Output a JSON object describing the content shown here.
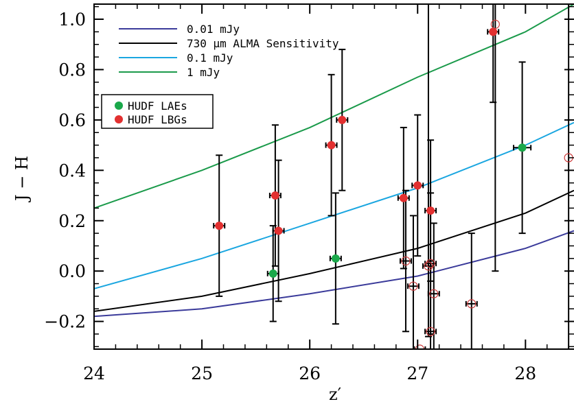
{
  "chart_data": {
    "type": "scatter",
    "xlabel": "z′",
    "ylabel": "J − H",
    "xlim": [
      24,
      28.45
    ],
    "ylim": [
      -0.31,
      1.06
    ],
    "xticks": [
      "24",
      "25",
      "26",
      "27",
      "28"
    ],
    "yticks": [
      "1.0",
      "0.8",
      "0.6",
      "0.4",
      "0.2",
      "0.0",
      "−0.2"
    ],
    "xtick_values": [
      24,
      25,
      26,
      27,
      28
    ],
    "ytick_values": [
      1.0,
      0.8,
      0.6,
      0.4,
      0.2,
      0.0,
      -0.2
    ],
    "grid": false,
    "lines": [
      {
        "name": "0.01 mJy",
        "color": "#3a3a9a",
        "x": [
          24,
          25,
          26,
          27,
          28,
          28.45
        ],
        "y": [
          -0.18,
          -0.15,
          -0.09,
          -0.02,
          0.09,
          0.16
        ]
      },
      {
        "name": "730 μm ALMA Sensitivity",
        "color": "#000000",
        "x": [
          24,
          25,
          26,
          27,
          28,
          28.45
        ],
        "y": [
          -0.16,
          -0.1,
          -0.01,
          0.09,
          0.23,
          0.32
        ]
      },
      {
        "name": "0.1 mJy",
        "color": "#1aa6e0",
        "x": [
          24,
          25,
          26,
          27,
          28,
          28.45
        ],
        "y": [
          -0.07,
          0.05,
          0.19,
          0.33,
          0.5,
          0.59
        ]
      },
      {
        "name": "1 mJy",
        "color": "#1a9a4a",
        "x": [
          24,
          25,
          26,
          27,
          28,
          28.45
        ],
        "y": [
          0.25,
          0.4,
          0.57,
          0.77,
          0.95,
          1.06
        ]
      }
    ],
    "series": [
      {
        "name": "HUDF LAEs",
        "color": "#1aa84a",
        "points": [
          {
            "x": 25.66,
            "y": -0.01,
            "ylo": -0.2,
            "yhi": 0.18,
            "xerr": 0.01
          },
          {
            "x": 26.24,
            "y": 0.05,
            "ylo": -0.21,
            "yhi": 0.31,
            "xerr": 0.05
          },
          {
            "x": 27.97,
            "y": 0.49,
            "ylo": 0.15,
            "yhi": 0.83,
            "xerr": 0.08
          }
        ]
      },
      {
        "name": "HUDF LBGs",
        "color": "#e23030",
        "points": [
          {
            "x": 25.16,
            "y": 0.18,
            "ylo": -0.1,
            "yhi": 0.46,
            "xerr": 0.05
          },
          {
            "x": 25.68,
            "y": 0.3,
            "ylo": 0.02,
            "yhi": 0.58,
            "xerr": 0.05
          },
          {
            "x": 25.71,
            "y": 0.16,
            "ylo": -0.12,
            "yhi": 0.44,
            "xerr": 0.04
          },
          {
            "x": 26.2,
            "y": 0.5,
            "ylo": 0.22,
            "yhi": 0.78,
            "xerr": 0.01
          },
          {
            "x": 26.3,
            "y": 0.6,
            "ylo": 0.32,
            "yhi": 0.88,
            "xerr": 0.04
          },
          {
            "x": 26.87,
            "y": 0.29,
            "ylo": 0.01,
            "yhi": 0.57,
            "xerr": 0.04
          },
          {
            "x": 27.0,
            "y": 0.34,
            "ylo": 0.06,
            "yhi": 0.62,
            "xerr": 0.04
          },
          {
            "x": 27.12,
            "y": 0.24,
            "ylo": -0.04,
            "yhi": 0.52,
            "xerr": 0.03
          },
          {
            "x": 27.7,
            "y": 0.95,
            "ylo": 0.67,
            "yhi": 1.06,
            "xerr": 0.04
          }
        ]
      },
      {
        "name": "",
        "color": "#cc3a3a",
        "hollow": true,
        "points": [
          {
            "x": 26.89,
            "y": 0.04,
            "ylo": -0.24,
            "yhi": 0.32,
            "xerr": 0.04
          },
          {
            "x": 26.96,
            "y": -0.06,
            "ylo": -0.31,
            "yhi": 0.22,
            "xerr": 0.04
          },
          {
            "x": 27.02,
            "y": -0.31,
            "ylo": -0.31,
            "yhi": -0.31,
            "xerr": 0.04
          },
          {
            "x": 27.1,
            "y": 0.02,
            "ylo": -0.26,
            "yhi": 1.06,
            "xerr": 0.02
          },
          {
            "x": 27.12,
            "y": 0.03,
            "ylo": -0.25,
            "yhi": 0.31,
            "xerr": 0.02
          },
          {
            "x": 27.15,
            "y": -0.09,
            "ylo": -0.31,
            "yhi": 0.19,
            "xerr": 0.04
          },
          {
            "x": 27.12,
            "y": -0.24,
            "ylo": -0.31,
            "yhi": 0.04,
            "xerr": 0.03
          },
          {
            "x": 27.5,
            "y": -0.13,
            "ylo": -0.31,
            "yhi": 0.15,
            "xerr": 0.04
          },
          {
            "x": 27.72,
            "y": 0.98,
            "ylo": 0.0,
            "yhi": 1.06,
            "xerr": 0.0
          },
          {
            "x": 28.4,
            "y": 0.45,
            "ylo": -0.31,
            "yhi": 1.06,
            "xerr": 0.0
          }
        ]
      }
    ],
    "legend": {
      "position": "top-left",
      "line_entries": [
        "0.01 mJy",
        "730 μm ALMA Sensitivity",
        "0.1 mJy",
        "1 mJy"
      ],
      "marker_entries": [
        "HUDF LAEs",
        "HUDF LBGs"
      ]
    }
  }
}
